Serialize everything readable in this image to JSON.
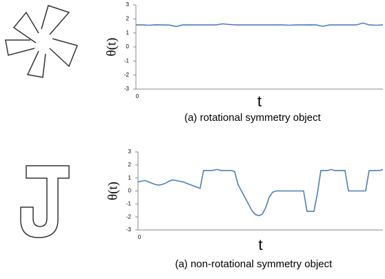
{
  "chart_data": [
    {
      "type": "line",
      "caption": "(a) rotational symmetry object",
      "xlabel": "t",
      "ylabel": "θ(t)",
      "color": "#4a7ebb",
      "ylim": [
        -3,
        3
      ],
      "yticks": [
        -3,
        -2,
        -1,
        0,
        1,
        2,
        3
      ],
      "xticks": [
        0
      ],
      "values": [
        1.57,
        1.57,
        1.55,
        1.58,
        1.57,
        1.56,
        1.45,
        1.57,
        1.57,
        1.57,
        1.57,
        1.57,
        1.57,
        1.65,
        1.6,
        1.57,
        1.57,
        1.57,
        1.57,
        1.57,
        1.57,
        1.57,
        1.57,
        1.55,
        1.57,
        1.57,
        1.58,
        1.57,
        1.47,
        1.57,
        1.57,
        1.57,
        1.57,
        1.57,
        1.7,
        1.57,
        1.55,
        1.57
      ]
    },
    {
      "type": "line",
      "caption": "(a) non-rotational symmetry object",
      "xlabel": "t",
      "ylabel": "θ(t)",
      "color": "#4a7ebb",
      "ylim": [
        -3,
        3
      ],
      "yticks": [
        -3,
        -2,
        -1,
        0,
        1,
        2,
        3
      ],
      "xticks": [
        0
      ],
      "values": [
        0.7,
        0.75,
        0.8,
        0.7,
        0.6,
        0.5,
        0.45,
        0.5,
        0.6,
        0.75,
        0.85,
        0.8,
        0.75,
        0.7,
        0.6,
        0.5,
        0.4,
        0.3,
        0.2,
        1.57,
        1.57,
        1.57,
        1.6,
        1.65,
        1.57,
        1.57,
        1.57,
        1.57,
        1.5,
        0.5,
        0,
        -0.5,
        -1.0,
        -1.5,
        -1.8,
        -1.9,
        -1.8,
        -1.3,
        -0.5,
        -0.1,
        0,
        0,
        0,
        0,
        0,
        0,
        0,
        0,
        0,
        -1.57,
        -1.57,
        -1.57,
        -0.2,
        1.57,
        1.57,
        1.57,
        1.65,
        1.57,
        1.57,
        1.57,
        1.57,
        0,
        0,
        0,
        0,
        0,
        0,
        1.57,
        1.57,
        1.57,
        1.57,
        1.65
      ]
    }
  ]
}
